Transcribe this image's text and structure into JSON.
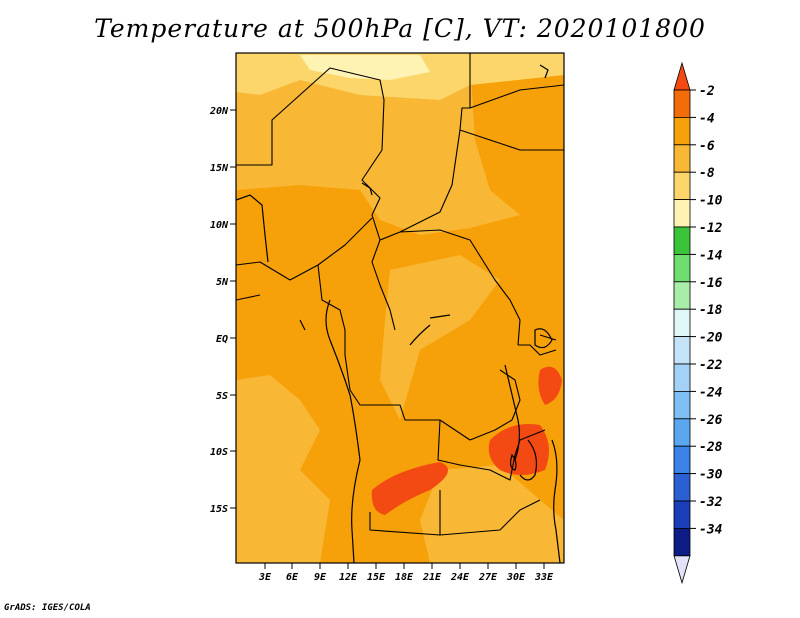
{
  "title": "Temperature at 500hPa [C], VT: 2020101800",
  "credit": "GrADS: IGES/COLA",
  "map": {
    "lat_ticks": [
      "20N",
      "15N",
      "10N",
      "5N",
      "EQ",
      "5S",
      "10S",
      "15S"
    ],
    "lon_ticks": [
      "3E",
      "6E",
      "9E",
      "12E",
      "15E",
      "18E",
      "21E",
      "24E",
      "27E",
      "30E",
      "33E"
    ]
  },
  "colorbar": {
    "labels": [
      "-2",
      "-4",
      "-6",
      "-8",
      "-10",
      "-12",
      "-14",
      "-16",
      "-18",
      "-20",
      "-22",
      "-24",
      "-26",
      "-28",
      "-30",
      "-32",
      "-34"
    ],
    "colors": [
      "#f24a12",
      "#f36c0a",
      "#f7a10a",
      "#f8b735",
      "#fcd66a",
      "#fff3b4",
      "#3bc33b",
      "#6fdd6f",
      "#a8eda8",
      "#e0f7f7",
      "#c5e3f8",
      "#a3d2f6",
      "#7fbff3",
      "#5aa6ef",
      "#3a82e8",
      "#2a60d2",
      "#1a3db8",
      "#0e1c86",
      "#e2e2f8"
    ]
  },
  "field_colors": {
    "warmest": "#f24a12",
    "warm": "#f7a10a",
    "mild": "#f8b735",
    "cool": "#fcd66a",
    "coolest": "#fff3b4"
  }
}
